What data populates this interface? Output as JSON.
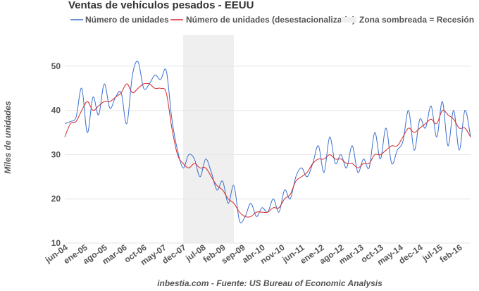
{
  "chart_data": {
    "type": "line",
    "title": "Ventas de vehículos pesados - EEUU",
    "ylabel": "Miles de unidades",
    "xlabel": "",
    "source": "inbestia.com - Fuente: US Bureau of Economic Analysis",
    "ylim": [
      10,
      57
    ],
    "yticks": [
      10,
      20,
      30,
      40,
      50
    ],
    "grid": true,
    "legend_position": "top",
    "colors": {
      "raw": "#3a6fcf",
      "adj": "#d62728",
      "shade": "#efefef"
    },
    "series_names": {
      "raw": "Número de unidades",
      "adj": "Número de unidades (desestacionalizado)",
      "shade": "Zona sombreada = Recesión"
    },
    "x_start": {
      "year": 2004,
      "month": 6
    },
    "x_end": {
      "year": 2016,
      "month": 6
    },
    "recession": {
      "start_month_index": 42,
      "end_month_index": 60
    },
    "xticks": [
      {
        "label": "jun-04",
        "month_index": 0
      },
      {
        "label": "ene-05",
        "month_index": 7
      },
      {
        "label": "ago-05",
        "month_index": 14
      },
      {
        "label": "mar-06",
        "month_index": 21
      },
      {
        "label": "oct-06",
        "month_index": 28
      },
      {
        "label": "may-07",
        "month_index": 35
      },
      {
        "label": "dec-07",
        "month_index": 42
      },
      {
        "label": "jul-08",
        "month_index": 49
      },
      {
        "label": "feb-09",
        "month_index": 56
      },
      {
        "label": "sep-09",
        "month_index": 63
      },
      {
        "label": "abr-10",
        "month_index": 70
      },
      {
        "label": "nov-10",
        "month_index": 77
      },
      {
        "label": "jun-11",
        "month_index": 84
      },
      {
        "label": "ene-12",
        "month_index": 91
      },
      {
        "label": "ago-12",
        "month_index": 98
      },
      {
        "label": "mar-13",
        "month_index": 105
      },
      {
        "label": "oct-13",
        "month_index": 112
      },
      {
        "label": "may-14",
        "month_index": 119
      },
      {
        "label": "dec-14",
        "month_index": 126
      },
      {
        "label": "jul-15",
        "month_index": 133
      },
      {
        "label": "feb-16",
        "month_index": 140
      }
    ],
    "sample_month_indices": [
      0,
      2,
      4,
      6,
      8,
      10,
      12,
      14,
      16,
      18,
      20,
      22,
      24,
      26,
      28,
      30,
      32,
      34,
      36,
      38,
      40,
      42,
      44,
      46,
      48,
      50,
      52,
      54,
      56,
      58,
      60,
      62,
      64,
      66,
      68,
      70,
      72,
      74,
      76,
      78,
      80,
      82,
      84,
      86,
      88,
      90,
      92,
      94,
      96,
      98,
      100,
      102,
      104,
      106,
      108,
      110,
      112,
      114,
      116,
      118,
      120,
      122,
      124,
      126,
      128,
      130,
      132,
      134,
      136,
      138,
      140,
      142,
      144
    ],
    "series": [
      {
        "name": "Número de unidades",
        "key": "raw",
        "values": [
          37,
          37.5,
          38.5,
          45,
          35,
          43,
          39,
          46,
          40.5,
          43,
          44,
          37,
          48,
          51,
          45,
          46,
          48,
          47,
          49,
          38,
          31,
          27,
          30,
          29,
          25,
          29,
          26,
          22,
          24,
          19,
          23,
          15,
          16,
          19,
          16,
          18,
          17,
          20,
          17,
          22,
          20,
          25,
          27,
          25,
          28,
          32,
          26,
          34,
          28,
          30,
          27,
          32,
          26,
          29,
          27,
          35,
          29,
          36,
          28,
          31,
          33,
          40,
          31,
          38,
          36,
          41,
          34,
          42,
          32,
          40,
          31,
          40,
          34
        ]
      },
      {
        "name": "Número de unidades (desestacionalizado)",
        "key": "adj",
        "values": [
          34,
          37,
          37.5,
          40,
          42,
          40,
          41,
          42,
          42,
          43,
          44,
          46,
          44,
          45,
          46,
          46,
          45,
          45,
          44,
          36,
          30,
          28,
          27,
          28,
          27,
          27,
          25,
          23,
          22,
          20,
          19,
          17,
          16,
          16,
          17,
          17,
          17,
          18,
          18,
          20,
          21,
          24,
          25,
          26,
          28,
          29,
          29,
          30,
          29,
          29,
          28,
          28,
          27,
          28,
          28,
          30,
          30,
          31,
          32,
          32,
          34,
          36,
          35,
          36,
          37,
          38,
          37,
          40,
          39,
          38,
          36,
          36,
          34
        ]
      }
    ]
  }
}
